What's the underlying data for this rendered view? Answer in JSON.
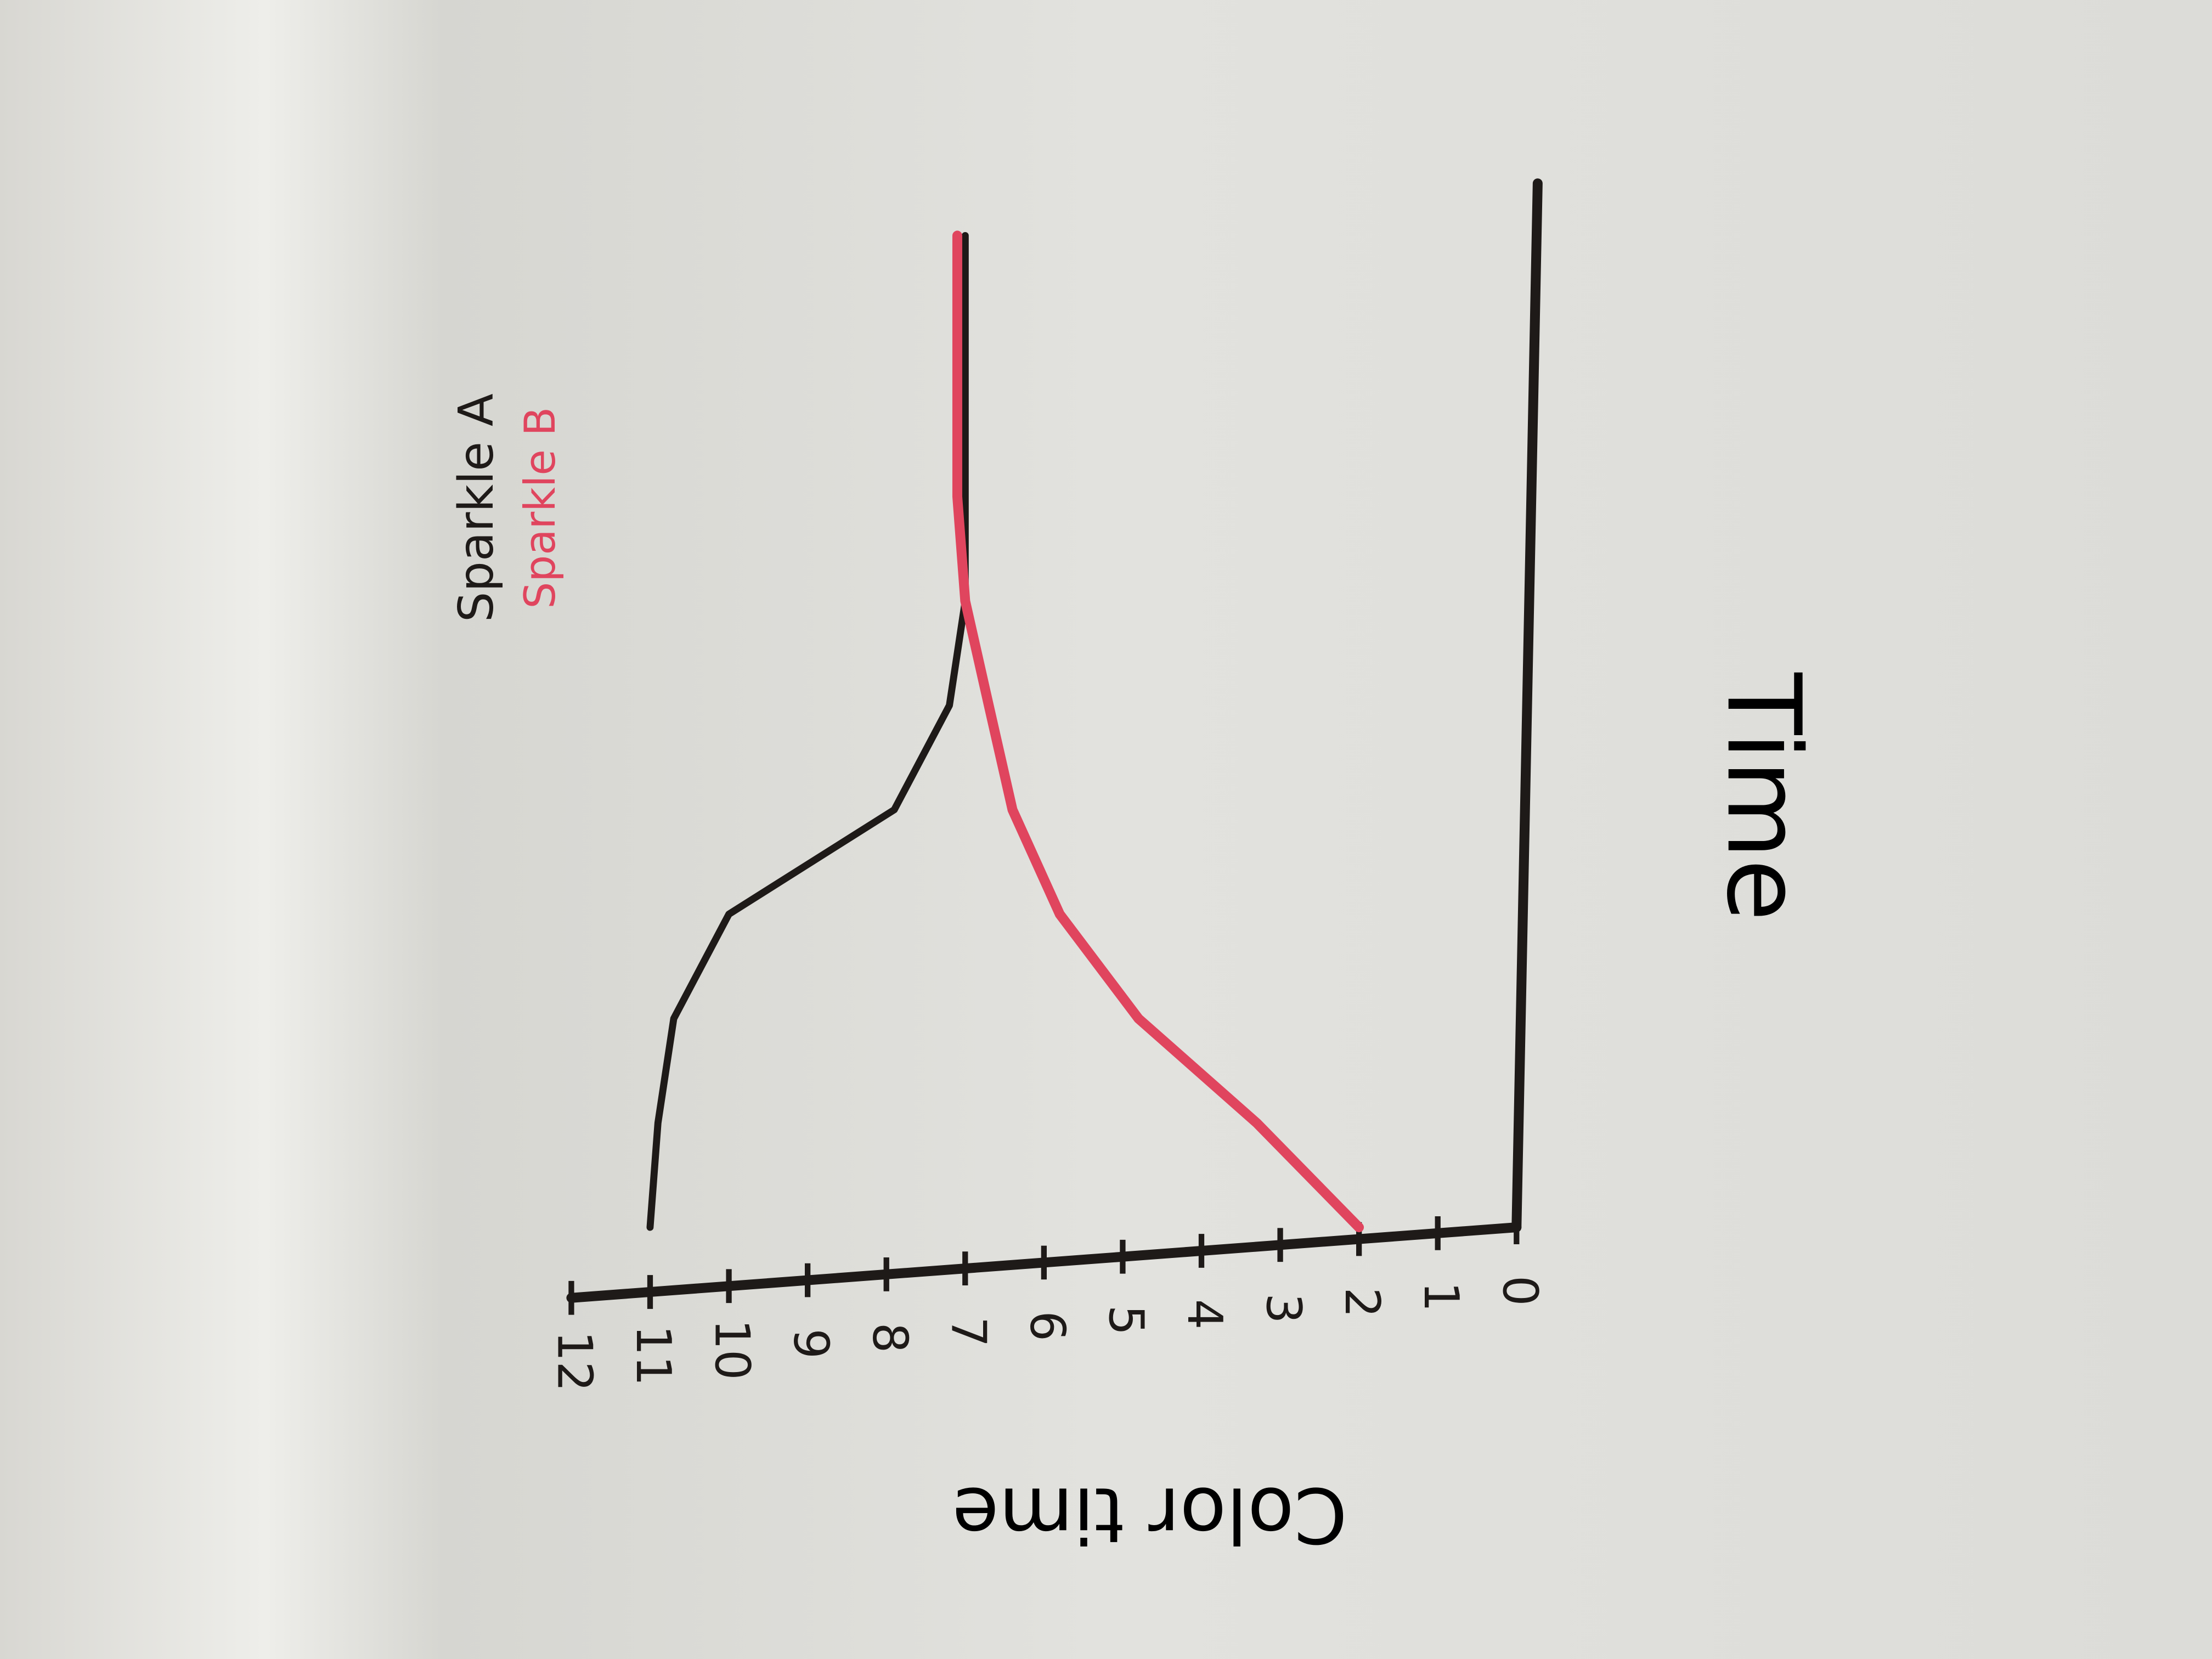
{
  "chart_data": {
    "type": "line",
    "x_label": "Time",
    "y_label": "Color time",
    "x": [
      0,
      1,
      2,
      3,
      4,
      5,
      6,
      7,
      8,
      9,
      9.5
    ],
    "series": [
      {
        "name": "Sparkle A",
        "color": "#1e1a18",
        "values": [
          11,
          10.9,
          10.7,
          10,
          7.9,
          7.2,
          7,
          7,
          7,
          7,
          7
        ]
      },
      {
        "name": "Sparkle B",
        "color": "#e0455e",
        "values": [
          2,
          3.3,
          4.8,
          5.8,
          6.4,
          6.7,
          7,
          7.1,
          7.1,
          7.1,
          7.1
        ]
      }
    ],
    "xlim": [
      0,
      10
    ],
    "ylim": [
      0,
      12
    ],
    "yticks": [
      0,
      1,
      2,
      3,
      4,
      5,
      6,
      7,
      8,
      9,
      10,
      11,
      12
    ],
    "legend": "top-left",
    "grid": false
  }
}
